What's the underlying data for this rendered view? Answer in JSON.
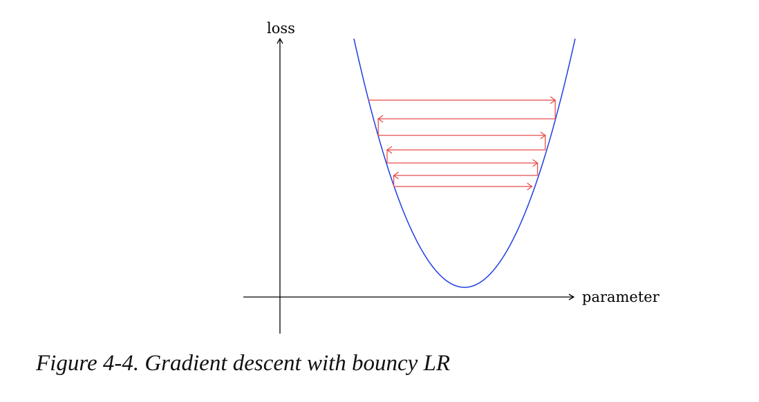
{
  "figure": {
    "y_axis_label": "loss",
    "x_axis_label": "parameter",
    "caption": "Figure 4-4. Gradient descent with bouncy LR"
  },
  "colors": {
    "curve": "#1f3de0",
    "steps": "#e84a4a",
    "axes": "#000000"
  },
  "chart_data": {
    "type": "diagram",
    "curve": "parabola",
    "curve_parameter_range": [
      -1.0,
      1.0
    ],
    "steps": [
      {
        "from": -0.87,
        "to": 0.82
      },
      {
        "from": 0.82,
        "to": -0.78
      },
      {
        "from": -0.78,
        "to": 0.73
      },
      {
        "from": 0.73,
        "to": -0.7
      },
      {
        "from": -0.7,
        "to": 0.66
      },
      {
        "from": 0.66,
        "to": -0.64
      },
      {
        "from": -0.64,
        "to": 0.61
      }
    ]
  }
}
